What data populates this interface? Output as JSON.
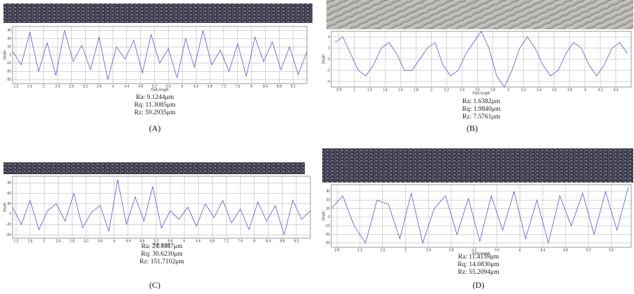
{
  "chart_data": [
    {
      "type": "line",
      "caption": "(A)",
      "x_label": "Path length",
      "y_label": "Depth",
      "annotations": [
        "Ra: 9.1244μm",
        "Rq: 11.3085μm",
        "Rz: 59.2935μm"
      ],
      "color": "#3a45c8",
      "grid": true,
      "x": [
        1.1,
        1.35,
        1.6,
        1.85,
        2.1,
        2.35,
        2.6,
        2.85,
        3.1,
        3.35,
        3.6,
        3.85,
        4.1,
        4.35,
        4.6,
        4.85,
        5.1,
        5.35,
        5.6,
        5.85,
        6.1,
        6.35,
        6.6,
        6.85,
        7.1,
        7.35,
        7.6,
        7.85,
        8.1,
        8.35,
        8.6,
        8.85,
        9.1,
        9.35,
        9.6
      ],
      "values": [
        5,
        -12,
        28,
        -20,
        15,
        -25,
        30,
        -8,
        12,
        -18,
        22,
        -30,
        10,
        -5,
        18,
        -22,
        25,
        -10,
        8,
        -28,
        20,
        -15,
        30,
        -12,
        6,
        -20,
        14,
        -26,
        22,
        -8,
        16,
        -18,
        10,
        -24,
        4
      ],
      "xlim": [
        1.1,
        9.6
      ],
      "ylim": [
        -35,
        35
      ],
      "xticks": [
        1.2,
        1.6,
        2,
        2.4,
        2.8,
        3.2,
        3.6,
        4,
        4.4,
        4.8,
        5.2,
        5.6,
        6,
        6.4,
        6.8,
        7.2,
        7.6,
        8,
        8.4,
        8.8,
        9.2
      ],
      "yticks": [
        -30,
        -20,
        -10,
        0,
        10,
        20,
        30
      ]
    },
    {
      "type": "line",
      "caption": "(B)",
      "x_label": "Path length",
      "y_label": "Depth",
      "annotations": [
        "Ra: 1.6382μm",
        "Rq: 1.9840μm",
        "Rz: 7.5761μm"
      ],
      "color": "#3a45c8",
      "grid": true,
      "x": [
        0.75,
        0.85,
        0.95,
        1.05,
        1.15,
        1.25,
        1.35,
        1.45,
        1.55,
        1.65,
        1.75,
        1.85,
        1.95,
        2.05,
        2.15,
        2.25,
        2.35,
        2.45,
        2.55,
        2.65,
        2.75,
        2.85,
        2.95,
        3.05,
        3.15,
        3.25,
        3.35,
        3.45,
        3.55,
        3.65,
        3.75,
        3.85,
        3.95,
        4.05,
        4.15,
        4.25,
        4.35,
        4.45,
        4.55
      ],
      "values": [
        3,
        4,
        1,
        -2,
        -3,
        -1,
        2,
        3,
        1,
        -2,
        -2,
        0,
        2,
        3,
        -1,
        -3,
        -2,
        1,
        3,
        5,
        2,
        -3,
        -5,
        -2,
        2,
        4,
        2,
        -1,
        -3,
        -2,
        1,
        3,
        2,
        -1,
        -3,
        -1,
        2,
        3,
        1
      ],
      "xlim": [
        0.7,
        4.6
      ],
      "ylim": [
        -5,
        5
      ],
      "xticks": [
        0.8,
        1,
        1.2,
        1.4,
        1.6,
        1.8,
        2,
        2.2,
        2.4,
        2.6,
        2.8,
        3,
        3.2,
        3.4,
        3.6,
        3.8,
        4,
        4.2,
        4.4
      ],
      "yticks": [
        -4,
        -2,
        0,
        2,
        4
      ]
    },
    {
      "type": "line",
      "caption": "(C)",
      "x_label": "Path length",
      "y_label": "Depth",
      "annotations": [
        "Ra: 24.4447μm",
        "Rq: 30.6230μm",
        "Rz: 151.7102μm"
      ],
      "color": "#3a45c8",
      "grid": true,
      "x": [
        1.1,
        1.35,
        1.6,
        1.85,
        2.1,
        2.35,
        2.6,
        2.85,
        3.1,
        3.35,
        3.6,
        3.85,
        4.1,
        4.35,
        4.6,
        4.85,
        5.1,
        5.35,
        5.6,
        5.85,
        6.1,
        6.35,
        6.6,
        6.85,
        7.1,
        7.35,
        7.6,
        7.85,
        8.1,
        8.35,
        8.6,
        8.85,
        9.1,
        9.35,
        9.6
      ],
      "values": [
        20,
        -30,
        40,
        -45,
        10,
        30,
        -20,
        60,
        -40,
        5,
        25,
        -50,
        100,
        -30,
        50,
        -20,
        80,
        -40,
        10,
        -15,
        20,
        -35,
        30,
        -10,
        40,
        -25,
        15,
        -45,
        35,
        -20,
        25,
        -60,
        40,
        -15,
        10
      ],
      "xlim": [
        1.1,
        9.6
      ],
      "ylim": [
        -70,
        110
      ],
      "xticks": [
        1.2,
        1.6,
        2,
        2.4,
        2.8,
        3.2,
        3.6,
        4,
        4.4,
        4.8,
        5.2,
        5.6,
        6,
        6.4,
        6.8,
        7.2,
        7.6,
        8,
        8.4,
        8.8,
        9.2
      ],
      "yticks": [
        -60,
        -30,
        0,
        30,
        60,
        90
      ]
    },
    {
      "type": "line",
      "caption": "(D)",
      "x_label": "Path length",
      "y_label": "Depth",
      "annotations": [
        "Ra: 11.4159μm",
        "Rq: 14.0830μm",
        "Rz: 55.2094μm"
      ],
      "color": "#3a45c8",
      "grid": true,
      "x": [
        0.7,
        0.9,
        1.1,
        1.3,
        1.5,
        1.7,
        1.9,
        2.1,
        2.3,
        2.5,
        2.7,
        2.9,
        3.1,
        3.3,
        3.5,
        3.7,
        3.9,
        4.1,
        4.3,
        4.5,
        4.7,
        4.9,
        5.1,
        5.3,
        5.5,
        5.7,
        5.9
      ],
      "values": [
        10,
        25,
        -10,
        -30,
        20,
        15,
        -25,
        28,
        -30,
        10,
        25,
        -20,
        22,
        -28,
        25,
        -15,
        30,
        -25,
        20,
        -30,
        25,
        -10,
        28,
        -20,
        30,
        -15,
        35
      ],
      "xlim": [
        0.7,
        5.95
      ],
      "ylim": [
        -35,
        38
      ],
      "xticks": [
        0.8,
        1.2,
        1.6,
        2,
        2.4,
        2.8,
        3.2,
        3.6,
        4,
        4.4,
        4.8,
        5.2,
        5.6
      ],
      "yticks": [
        -30,
        -20,
        -10,
        0,
        10,
        20,
        30
      ]
    }
  ]
}
